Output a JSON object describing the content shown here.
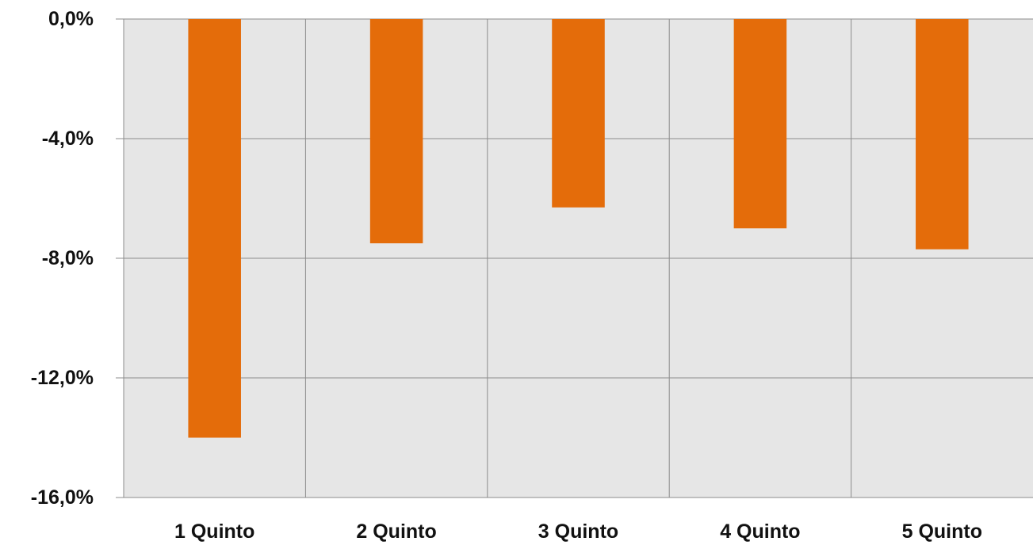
{
  "chart_data": {
    "type": "bar",
    "title": "",
    "xlabel": "",
    "ylabel": "",
    "categories": [
      "1 Quinto",
      "2 Quinto",
      "3 Quinto",
      "4 Quinto",
      "5 Quinto"
    ],
    "values": [
      -14.0,
      -7.5,
      -6.3,
      -7.0,
      -7.7
    ],
    "ylim": [
      -16.0,
      0.0
    ],
    "yticks": [
      0.0,
      -4.0,
      -8.0,
      -12.0,
      -16.0
    ],
    "ytick_labels": [
      "0,0%",
      "-4,0%",
      "-8,0%",
      "-12,0%",
      "-16,0%"
    ],
    "grid": true,
    "legend": "none",
    "colors": {
      "bar": "#E46C0A",
      "plot_background": "#E6E6E6",
      "gridline": "#8C8C8C"
    }
  }
}
